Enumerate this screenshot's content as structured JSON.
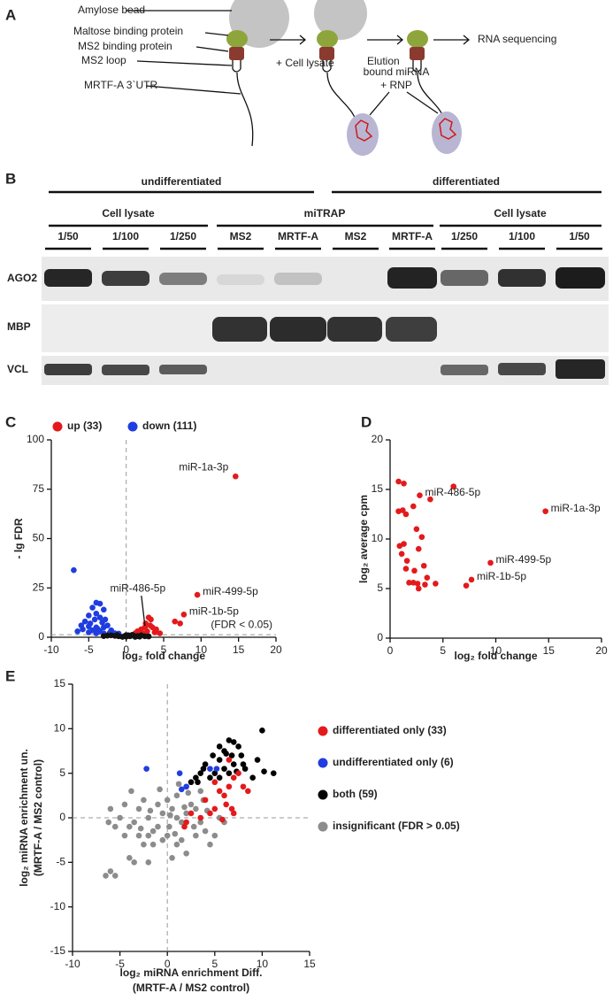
{
  "panels": [
    "A",
    "B",
    "C",
    "D",
    "E"
  ],
  "diagram": {
    "labels": [
      "Amylose bead",
      "Maltose binding protein",
      "MS2 binding protein",
      "MS2 loop",
      "MRTF-A 3`UTR"
    ],
    "steps": [
      "+ Cell lysate",
      "Elution",
      "RNA sequencing"
    ],
    "bound": [
      "bound miRNA",
      "+ RNP"
    ]
  },
  "blot": {
    "groups": [
      "undifferentiated",
      "differentiated"
    ],
    "subgroups": [
      "Cell lysate",
      "miTRAP",
      "Cell lysate"
    ],
    "lanes": [
      "1/50",
      "1/100",
      "1/250",
      "MS2",
      "MRTF-A",
      "MS2",
      "MRTF-A",
      "1/250",
      "1/100",
      "1/50"
    ],
    "rows": [
      "AGO2",
      "MBP",
      "VCL"
    ]
  },
  "chart_data": [
    {
      "type": "scatter",
      "x_label": [
        "log₂ fold change"
      ],
      "y_label": [
        "- lg FDR"
      ],
      "xlim": [
        -10,
        20
      ],
      "xticks": [
        -10,
        -5,
        0,
        5,
        10,
        15,
        20
      ],
      "ylim": [
        0,
        100
      ],
      "yticks": [
        0,
        25,
        50,
        75,
        100
      ],
      "zero_lines": true,
      "threshold": 1.3,
      "threshold_label": "(FDR < 0.05)",
      "legend": "top",
      "series": [
        {
          "name": "up (33)",
          "color": "#e31a1c",
          "x": [
            14.6,
            9.5,
            7.7,
            7.2,
            6.5,
            3,
            3.3,
            2.5,
            3.5,
            2,
            2.8,
            1.5,
            4,
            3.2,
            2.2,
            1.2,
            4.5,
            3.8,
            2.6,
            1.8
          ],
          "y": [
            81.5,
            21.5,
            11.5,
            7,
            8,
            10,
            9,
            5,
            5,
            4,
            3,
            3,
            4,
            6,
            2,
            2,
            2,
            2.5,
            7,
            1.5
          ]
        },
        {
          "name": "down (111)",
          "color": "#1f3de0",
          "x": [
            -7,
            -4,
            -3.5,
            -4.5,
            -3,
            -4,
            -5,
            -3.5,
            -4.2,
            -2.8,
            -5.5,
            -4.8,
            -3.2,
            -6,
            -5,
            -4,
            -3,
            -2.5,
            -5.8,
            -4.5,
            -3.5,
            -2,
            -6.5,
            -5,
            -4,
            -3,
            -2.2,
            -1.5,
            -1,
            -3.8
          ],
          "y": [
            34,
            17.5,
            17,
            15,
            14,
            12,
            11,
            10,
            9,
            9,
            8,
            7,
            7.5,
            6,
            5.5,
            5,
            5,
            6,
            4,
            3.5,
            3,
            3.5,
            3,
            2.5,
            2,
            2,
            2.2,
            2,
            1.8,
            4.2
          ]
        },
        {
          "color": "#111111",
          "x": [
            -2,
            -1,
            0,
            0.5,
            1,
            1.5,
            -0.5,
            2,
            0.3,
            -1.5,
            2.5,
            -2.5,
            1.2,
            -0.2,
            0.8,
            -1.2,
            3,
            -3,
            0,
            1.8
          ],
          "y": [
            1,
            0.5,
            0.3,
            0.5,
            0.8,
            0.6,
            0.2,
            1,
            1,
            0.7,
            0.5,
            0.8,
            0.2,
            0.6,
            1.2,
            1.1,
            0.4,
            0.6,
            1.1,
            0.3
          ]
        }
      ],
      "annotations": [
        {
          "text": "miR-1a-3p",
          "x": 14.6,
          "y": 81.5,
          "placement": "left"
        },
        {
          "text": "miR-499-5p",
          "x": 9.5,
          "y": 21.5,
          "placement": "right"
        },
        {
          "text": "miR-1b-5p",
          "x": 7.7,
          "y": 11.5,
          "placement": "right"
        },
        {
          "text": "miR-486-5p",
          "x": 2.5,
          "y": 4,
          "placement": "above"
        }
      ]
    },
    {
      "type": "scatter",
      "x_label": [
        "log₂ fold change"
      ],
      "y_label": [
        "log₂ average cpm"
      ],
      "xlim": [
        0,
        20
      ],
      "xticks": [
        0,
        5,
        10,
        15,
        20
      ],
      "ylim": [
        0,
        20
      ],
      "yticks": [
        0,
        5,
        10,
        15,
        20
      ],
      "series": [
        {
          "color": "#e31a1c",
          "x": [
            0.8,
            1.3,
            2.8,
            3.8,
            6,
            14.7,
            0.8,
            1.2,
            1.5,
            2.2,
            2.5,
            3,
            0.9,
            1.3,
            1.1,
            1.6,
            2.7,
            1.5,
            2.3,
            3.2,
            9.5,
            7.7,
            7.2,
            1.8,
            2.2,
            2.7,
            3.3,
            4.3,
            3.5,
            2.6
          ],
          "y": [
            15.8,
            15.6,
            14.4,
            14,
            15.3,
            12.8,
            12.8,
            12.9,
            12.5,
            13.3,
            11,
            10.2,
            9.3,
            9.5,
            8.5,
            7.8,
            9,
            7,
            6.8,
            7.3,
            7.6,
            5.9,
            5.3,
            5.6,
            5.6,
            5,
            5.4,
            5.5,
            6.1,
            5.5
          ]
        }
      ],
      "annotations": [
        {
          "text": "miR-486-5p",
          "x": 2.8,
          "y": 14.4,
          "placement": "right"
        },
        {
          "text": "miR-1a-3p",
          "x": 14.7,
          "y": 12.8,
          "placement": "right"
        },
        {
          "text": "miR-499-5p",
          "x": 9.5,
          "y": 7.6,
          "placement": "right"
        },
        {
          "text": "miR-1b-5p",
          "x": 7.7,
          "y": 5.9,
          "placement": "right"
        }
      ]
    },
    {
      "type": "scatter",
      "x_label": [
        "log₂ miRNA enrichment Diff.",
        "(MRTF-A / MS2 control)"
      ],
      "y_label": [
        "log₂ miRNA enrichment un.",
        "(MRTF-A / MS2 control)"
      ],
      "xlim": [
        -10,
        15
      ],
      "xticks": [
        -10,
        -5,
        0,
        5,
        10,
        15
      ],
      "ylim": [
        -15,
        15
      ],
      "yticks": [
        -15,
        -10,
        -5,
        0,
        5,
        10,
        15
      ],
      "zero_lines": true,
      "legend": "right",
      "series": [
        {
          "name": "insignificant (FDR > 0.05)",
          "color": "#8c8c8c",
          "x": [
            -6.5,
            -5.5,
            -6,
            -4,
            -3.5,
            -2.5,
            -3,
            -4,
            -5,
            -6,
            -4.5,
            -3,
            -2,
            -1,
            0,
            1,
            2,
            1.5,
            -1.5,
            -2,
            0.5,
            -0.5,
            0.5,
            1,
            2,
            1.5,
            -1,
            0,
            1,
            2.5,
            3,
            3.5,
            4,
            3,
            5,
            4.5,
            6,
            5.5,
            -2.5,
            -3.5,
            -4.5,
            -5.5,
            -1.5,
            -0.5,
            0.2,
            2.2,
            3.5,
            -0.8,
            1.8,
            -2.8,
            -3.8,
            0.8,
            2.8,
            4.2,
            -1.8,
            -6.2,
            3.8,
            -2,
            1.2,
            0.3
          ],
          "y": [
            -6.5,
            -6.5,
            -6,
            -4.5,
            -5,
            -3,
            -2,
            -1,
            0,
            1,
            1.5,
            1,
            0,
            -1,
            -2,
            -3,
            -4,
            -2.5,
            -3,
            -5,
            -4.5,
            0.5,
            1,
            0,
            0.5,
            -0.5,
            1.5,
            2,
            2.5,
            1.5,
            1,
            -0.5,
            -1.5,
            -2,
            -2,
            -3,
            -0.5,
            0,
            2,
            -0.5,
            -2,
            -1,
            -1.5,
            -2.5,
            -1,
            2.8,
            3,
            3.2,
            1.2,
            -1.2,
            3,
            -1.8,
            -1,
            0.8,
            0.8,
            -0.5,
            2,
            -2,
            3.8,
            0.3
          ]
        },
        {
          "name": "both (59)",
          "color": "#000000",
          "x": [
            10,
            11.2,
            10.2,
            9.5,
            9,
            8,
            7.8,
            7.5,
            6.5,
            7,
            6,
            5.5,
            6.8,
            7,
            6,
            5,
            5.5,
            4.8,
            4,
            3.8,
            3,
            3.5,
            2.5,
            4.5,
            6.5,
            7.3,
            8.2,
            3.2,
            5.5,
            6.2
          ],
          "y": [
            9.8,
            5,
            5.2,
            6.5,
            4.5,
            6,
            7,
            8,
            8.7,
            8.5,
            7.5,
            8,
            7,
            6,
            5.5,
            5,
            6.5,
            7,
            6,
            5.5,
            4.5,
            5,
            4,
            4.5,
            5,
            5.2,
            5.5,
            4,
            4.5,
            7.2
          ]
        },
        {
          "name": "differentiated only (33)",
          "color": "#e31a1c",
          "x": [
            5,
            5.5,
            6,
            6.5,
            7,
            7.5,
            8,
            6.2,
            5,
            4.5,
            3.5,
            2.5,
            2,
            1.8,
            6.8,
            7,
            4,
            5.8,
            8.5,
            6.5
          ],
          "y": [
            4,
            3,
            2.5,
            3.5,
            4.5,
            5,
            3.5,
            1.5,
            1,
            0.5,
            0,
            0.5,
            -0.5,
            -1,
            1,
            0.5,
            2,
            -0.2,
            3,
            6.5
          ]
        },
        {
          "name": "undifferentiated only (6)",
          "color": "#1f3de0",
          "x": [
            -2.2,
            1.3,
            2,
            4.5,
            5.2,
            1.5
          ],
          "y": [
            5.5,
            5,
            3.5,
            5.5,
            5.5,
            3.2
          ]
        }
      ]
    }
  ]
}
